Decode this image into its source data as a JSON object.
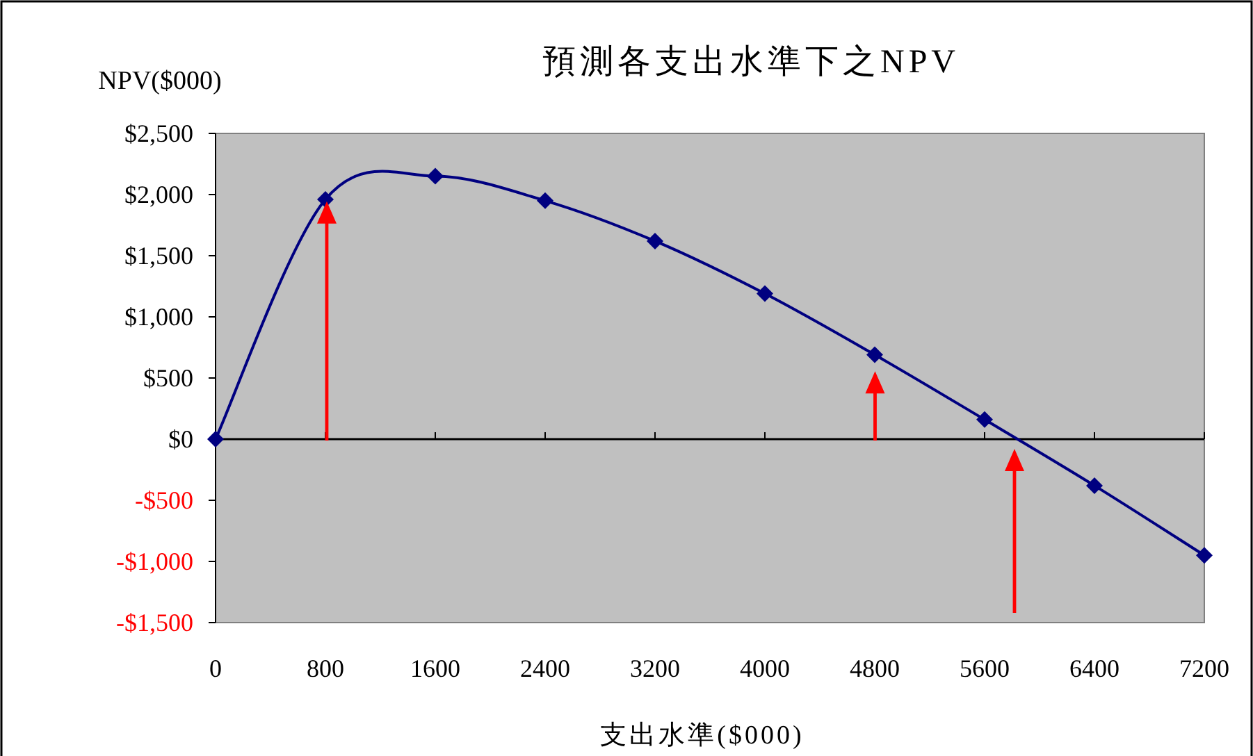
{
  "chart_data": {
    "type": "line",
    "title": "預測各支出水準下之NPV",
    "xlabel": "支出水準($000)",
    "ylabel": "NPV($000)",
    "x": [
      0,
      800,
      1600,
      2400,
      3200,
      4000,
      4800,
      5600,
      6400,
      7200
    ],
    "series": [
      {
        "color": "#000080",
        "values": [
          0,
          1960,
          2150,
          1950,
          1620,
          1190,
          690,
          160,
          -380,
          -950
        ]
      }
    ],
    "xlim": [
      0,
      7200
    ],
    "xticks": [
      0,
      800,
      1600,
      2400,
      3200,
      4000,
      4800,
      5600,
      6400,
      7200
    ],
    "ylim": [
      -1500,
      2500
    ],
    "yticks": [
      {
        "value": -1500,
        "label": "-$1,500"
      },
      {
        "value": -1000,
        "label": "-$1,000"
      },
      {
        "value": -500,
        "label": "-$500"
      },
      {
        "value": 0,
        "label": "$0"
      },
      {
        "value": 500,
        "label": "$500"
      },
      {
        "value": 1000,
        "label": "$1,000"
      },
      {
        "value": 1500,
        "label": "$1,500"
      },
      {
        "value": 2000,
        "label": "$2,000"
      },
      {
        "value": 2500,
        "label": "$2,500"
      }
    ],
    "ref_lines": [
      {
        "axis": "y",
        "value": 0,
        "color": "#000000"
      }
    ],
    "marker": "diamond",
    "line_style": "solid",
    "grid": false
  }
}
